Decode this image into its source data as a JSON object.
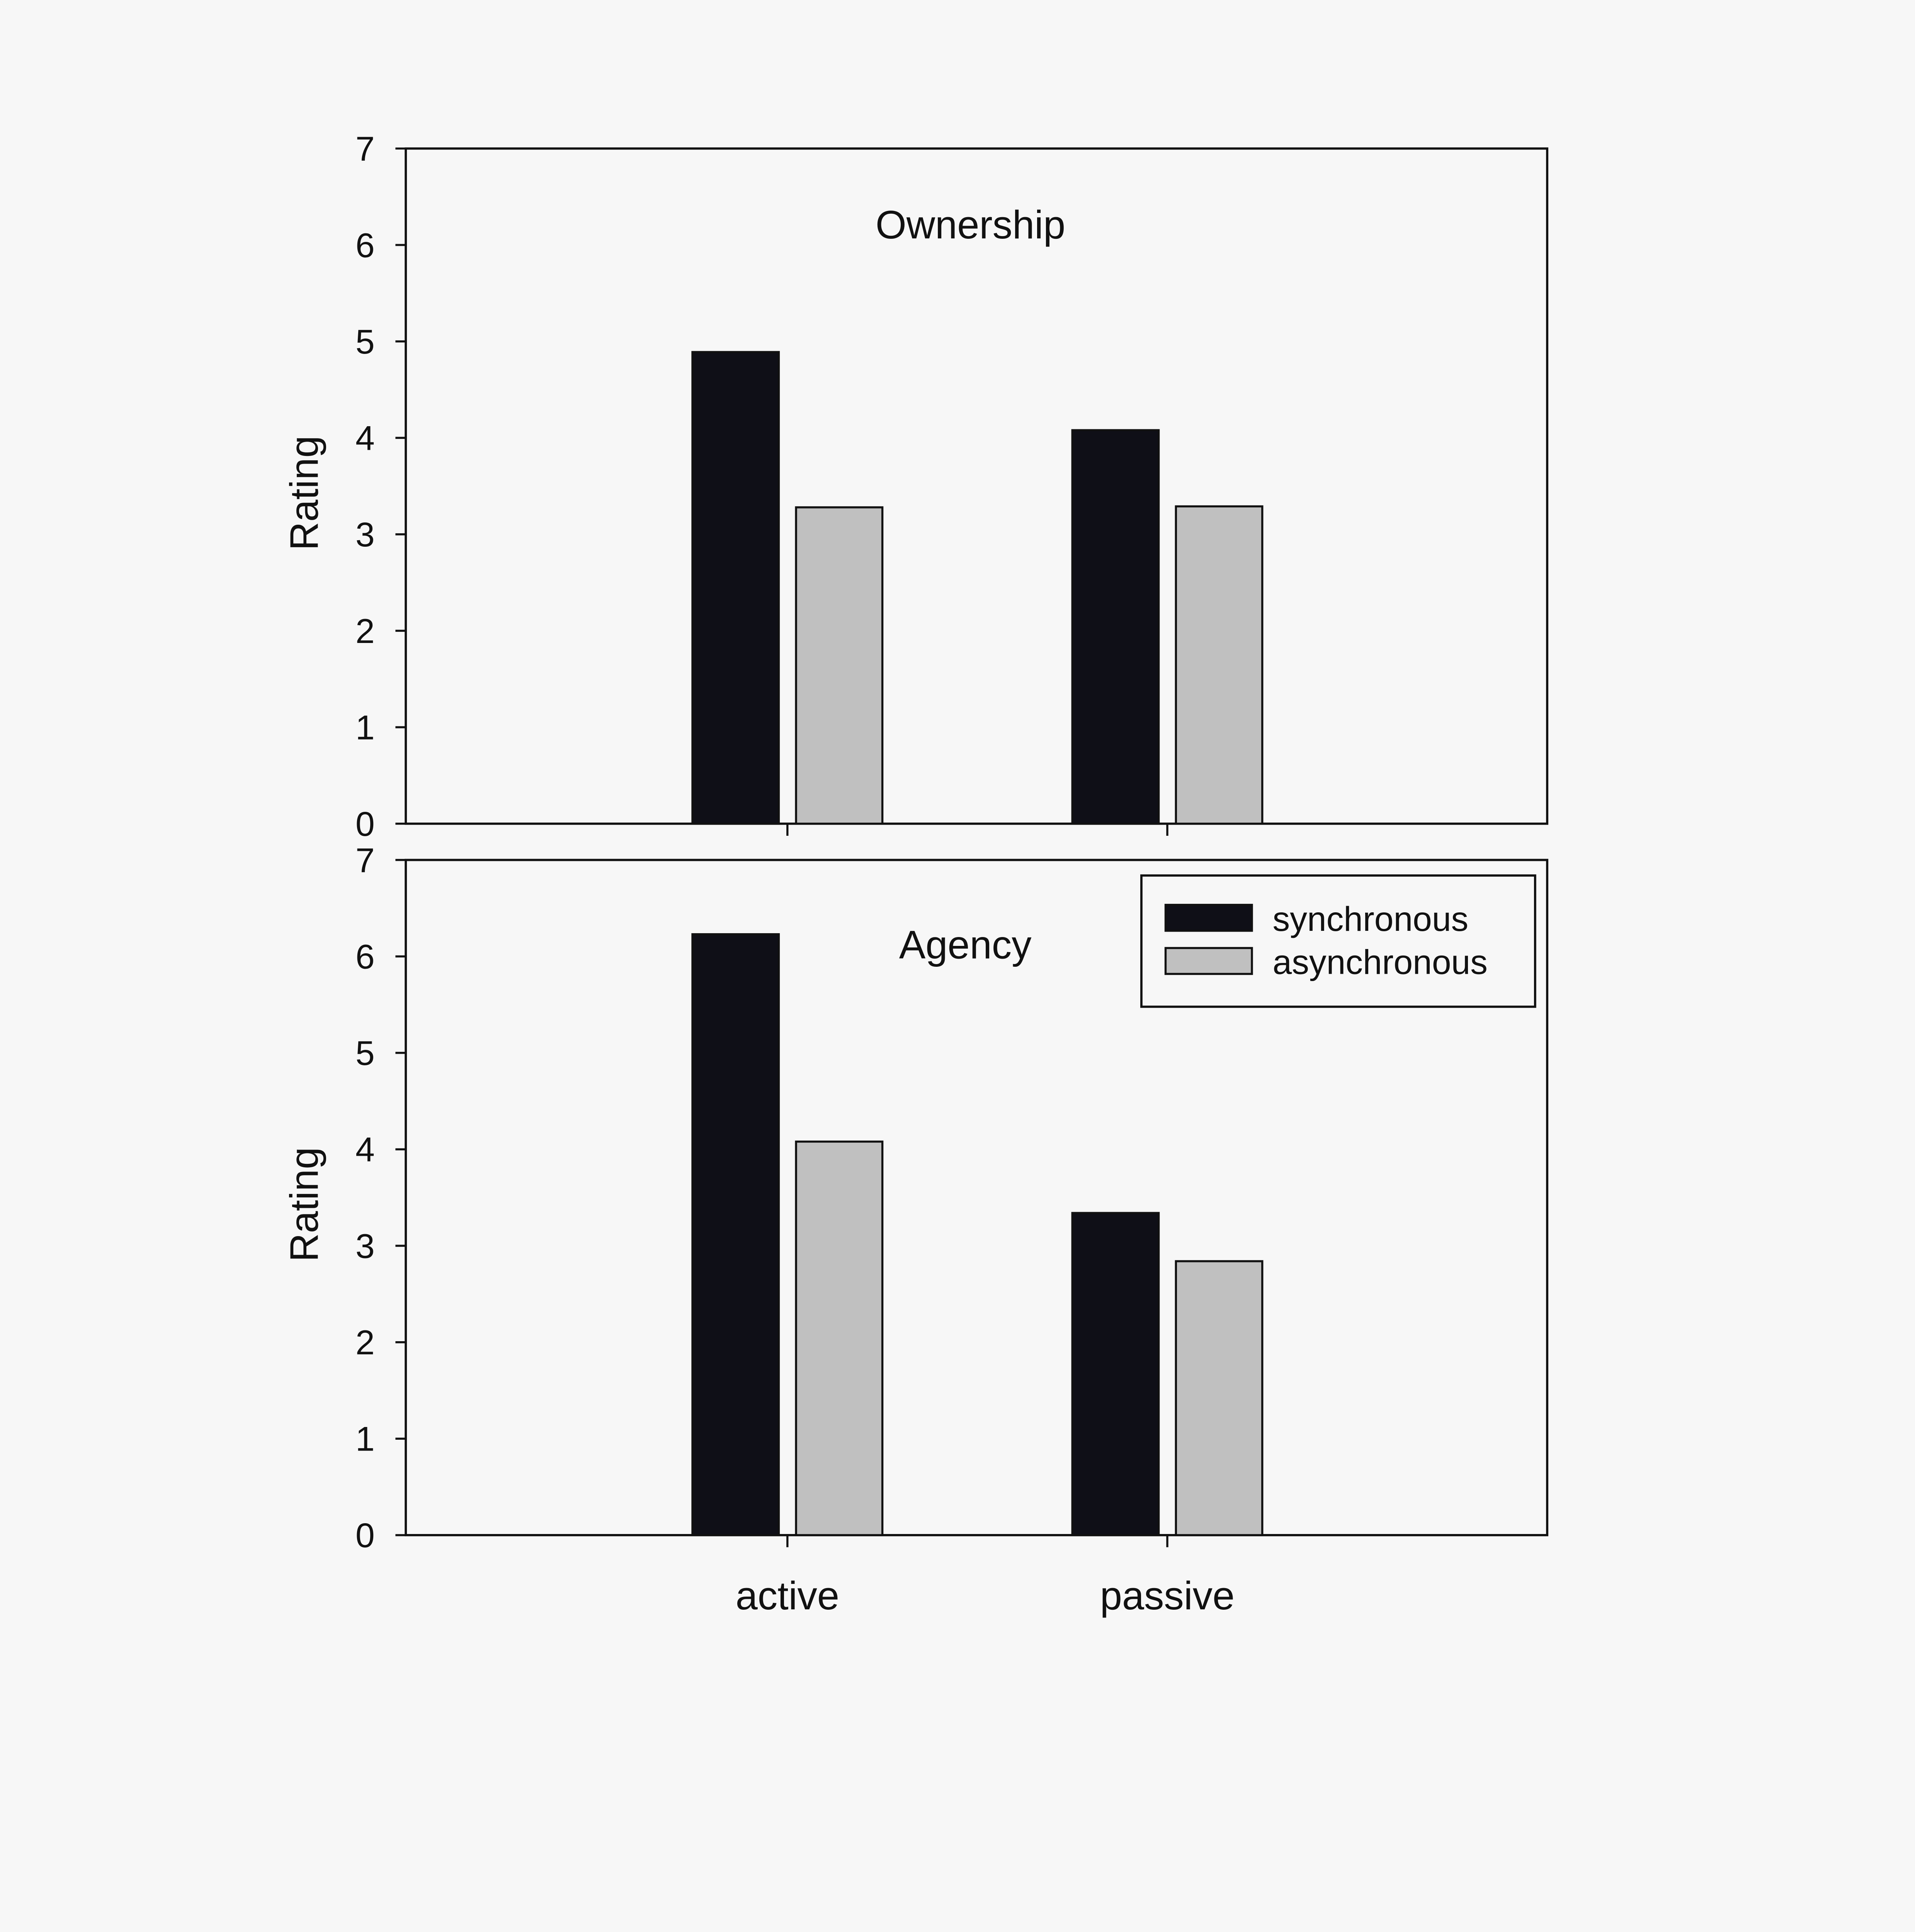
{
  "colors": {
    "synchronous": "#0f0f17",
    "asynchronous": "#c0c0c0",
    "background": "#f7f7f7"
  },
  "chart_data": [
    {
      "type": "bar",
      "title": "Ownership",
      "ylabel": "Rating",
      "xlabel": "",
      "ylim": [
        0,
        7
      ],
      "yticks": [
        "0",
        "1",
        "2",
        "3",
        "4",
        "5",
        "6",
        "7"
      ],
      "categories": [
        "active",
        "passive"
      ],
      "series": [
        {
          "name": "synchronous",
          "values": [
            4.89,
            4.08
          ]
        },
        {
          "name": "asynchronous",
          "values": [
            3.28,
            3.29
          ]
        }
      ],
      "legend": "none",
      "grid": false
    },
    {
      "type": "bar",
      "title": "Agency",
      "ylabel": "Rating",
      "xlabel": "",
      "ylim": [
        0,
        7
      ],
      "yticks": [
        "0",
        "1",
        "2",
        "3",
        "4",
        "5",
        "6",
        "7"
      ],
      "categories": [
        "active",
        "passive"
      ],
      "series": [
        {
          "name": "synchronous",
          "values": [
            6.23,
            3.34
          ]
        },
        {
          "name": "asynchronous",
          "values": [
            4.08,
            2.84
          ]
        }
      ],
      "legend": "top-right",
      "grid": false
    }
  ]
}
